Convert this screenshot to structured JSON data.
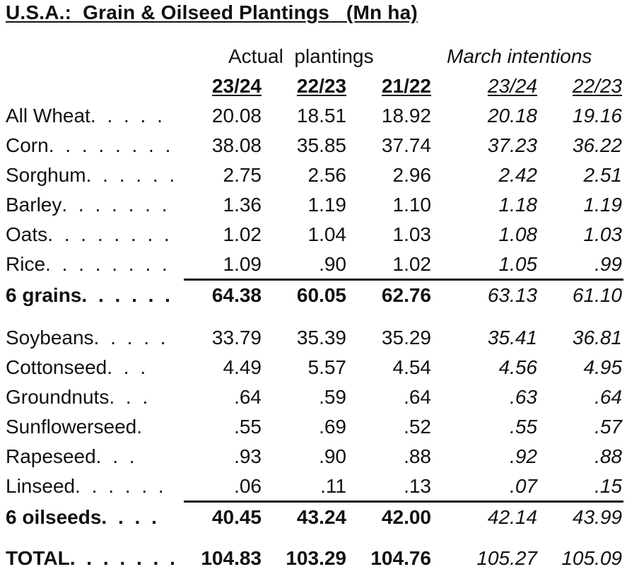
{
  "title": "U.S.A.:  Grain & Oilseed Plantings   (Mn ha)",
  "groups": {
    "actual": "Actual  plantings",
    "march": "March intentions"
  },
  "columns": [
    "23/24",
    "22/23",
    "21/22",
    "23/24",
    "22/23"
  ],
  "rows": [
    {
      "label": "All Wheat",
      "dots": ". . . . .",
      "values": [
        "20.08",
        "18.51",
        "18.92",
        "20.18",
        "19.16"
      ]
    },
    {
      "label": "Corn",
      "dots": ". . . . . . . . .",
      "values": [
        "38.08",
        "35.85",
        "37.74",
        "37.23",
        "36.22"
      ]
    },
    {
      "label": "Sorghum",
      "dots": ". . . . . .",
      "values": [
        "2.75",
        "2.56",
        "2.96",
        "2.42",
        "2.51"
      ]
    },
    {
      "label": "Barley",
      "dots": ". . . . . . .",
      "values": [
        "1.36",
        "1.19",
        "1.10",
        "1.18",
        "1.19"
      ]
    },
    {
      "label": "Oats",
      "dots": ". . . . . . . .",
      "values": [
        "1.02",
        "1.04",
        "1.03",
        "1.08",
        "1.03"
      ]
    },
    {
      "label": "Rice",
      "dots": ". . . . . . . .",
      "values": [
        "1.09",
        ".90",
        "1.02",
        "1.05",
        ".99"
      ]
    },
    {
      "label": "6 grains",
      "dots": ". . . . . .",
      "values": [
        "64.38",
        "60.05",
        "62.76",
        "63.13",
        "61.10"
      ]
    },
    {
      "label": "Soybeans",
      "dots": ". . . . .",
      "values": [
        "33.79",
        "35.39",
        "35.29",
        "35.41",
        "36.81"
      ]
    },
    {
      "label": "Cottonseed",
      "dots": ". . .",
      "values": [
        "4.49",
        "5.57",
        "4.54",
        "4.56",
        "4.95"
      ]
    },
    {
      "label": "Groundnuts",
      "dots": ". . .",
      "values": [
        ".64",
        ".59",
        ".64",
        ".63",
        ".64"
      ]
    },
    {
      "label": "Sunflowerseed",
      "dots": ".",
      "values": [
        ".55",
        ".69",
        ".52",
        ".55",
        ".57"
      ]
    },
    {
      "label": "Rapeseed",
      "dots": ". . .",
      "values": [
        ".93",
        ".90",
        ".88",
        ".92",
        ".88"
      ]
    },
    {
      "label": "Linseed",
      "dots": ". . . . . .",
      "values": [
        ".06",
        ".11",
        ".13",
        ".07",
        ".15"
      ]
    },
    {
      "label": "6 oilseeds",
      "dots": ". . . .",
      "values": [
        "40.45",
        "43.24",
        "42.00",
        "42.14",
        "43.99"
      ]
    },
    {
      "label": "TOTAL",
      "dots": ". . . . . . .",
      "values": [
        "104.83",
        "103.29",
        "104.76",
        "105.27",
        "105.09"
      ]
    }
  ]
}
